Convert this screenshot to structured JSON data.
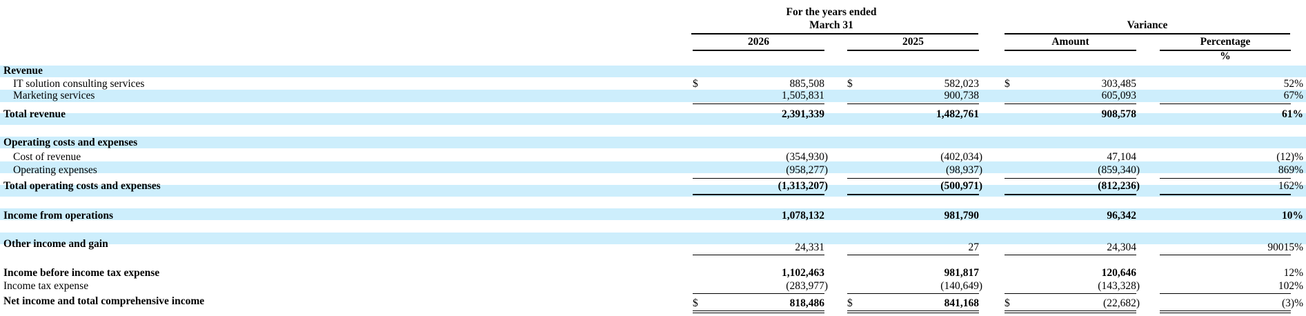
{
  "header": {
    "period_line1": "For the years ended",
    "period_line2": "March 31",
    "variance": "Variance",
    "col_2026": "2026",
    "col_2025": "2025",
    "col_amount": "Amount",
    "col_percentage": "Percentage",
    "pct_unit": "%"
  },
  "currency_symbol": "$",
  "colors": {
    "band": "#cdeefc"
  },
  "rows": {
    "revenue": {
      "label": "Revenue"
    },
    "it": {
      "label": "IT solution consulting services",
      "c2026": "885,508",
      "c2025": "582,023",
      "amount": "303,485",
      "pct": "52%"
    },
    "marketing": {
      "label": "Marketing services",
      "c2026": "1,505,831",
      "c2025": "900,738",
      "amount": "605,093",
      "pct": "67%"
    },
    "total_revenue": {
      "label": "Total revenue",
      "c2026": "2,391,339",
      "c2025": "1,482,761",
      "amount": "908,578",
      "pct": "61%"
    },
    "opcosts": {
      "label": "Operating costs and expenses"
    },
    "cost_rev": {
      "label": "Cost of revenue",
      "c2026": "(354,930)",
      "c2025": "(402,034)",
      "amount": "47,104",
      "pct": "(12)%"
    },
    "opex": {
      "label": "Operating expenses",
      "c2026": "(958,277)",
      "c2025": "(98,937)",
      "amount": "(859,340)",
      "pct": "869%"
    },
    "total_opcosts": {
      "label": "Total operating costs and expenses",
      "c2026": "(1,313,207)",
      "c2025": "(500,971)",
      "amount": "(812,236)",
      "pct": "162%"
    },
    "income_ops": {
      "label": "Income from operations",
      "c2026": "1,078,132",
      "c2025": "981,790",
      "amount": "96,342",
      "pct": "10%"
    },
    "other_income": {
      "label": "Other income and gain",
      "c2026": "24,331",
      "c2025": "27",
      "amount": "24,304",
      "pct": "90015%"
    },
    "income_before_tax": {
      "label": "Income before income tax expense",
      "c2026": "1,102,463",
      "c2025": "981,817",
      "amount": "120,646",
      "pct": "12%"
    },
    "tax": {
      "label": "Income tax expense",
      "c2026": "(283,977)",
      "c2025": "(140,649)",
      "amount": "(143,328)",
      "pct": "102%"
    },
    "net_income": {
      "label": "Net income and total comprehensive income",
      "c2026": "818,486",
      "c2025": "841,168",
      "amount": "(22,682)",
      "pct": "(3)%"
    }
  }
}
